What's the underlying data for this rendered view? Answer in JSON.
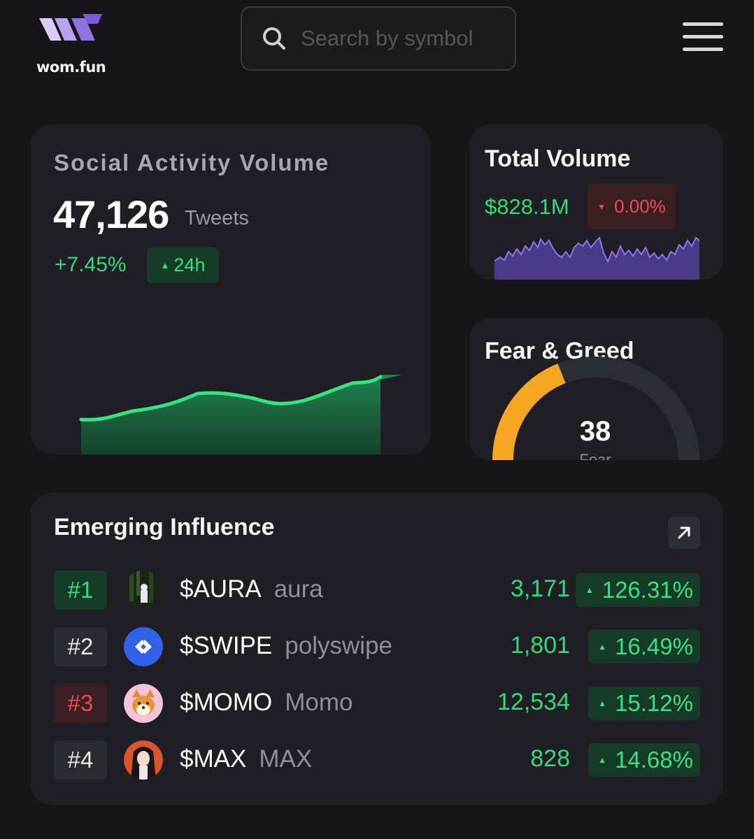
{
  "header": {
    "logo_text": "wom.fun",
    "search_placeholder": "Search by symbol",
    "icons": [
      "search-icon",
      "menu-icon"
    ]
  },
  "social_activity": {
    "title": "Social Activity Volume",
    "value": "47,126",
    "unit": "Tweets",
    "change": "+7.45%",
    "period": "24h",
    "accent_color": "#2fdc78"
  },
  "total_volume": {
    "title": "Total Volume",
    "value": "$828.1M",
    "change": "0.00%",
    "change_color": "#ef4a5a"
  },
  "fear_greed": {
    "title": "Fear & Greed",
    "value": "38",
    "label": "Fear",
    "gauge_fraction": 0.38,
    "gauge_color": "#f5a623"
  },
  "emerging": {
    "title": "Emerging Influence",
    "rows": [
      {
        "rank": "#1",
        "ticker": "$AURA",
        "name": "aura",
        "count": "3,171",
        "change": "126.31%",
        "rank_bg": "#153a28",
        "rank_color": "#34e07e"
      },
      {
        "rank": "#2",
        "ticker": "$SWIPE",
        "name": "polyswipe",
        "count": "1,801",
        "change": "16.49%",
        "rank_bg": "#2a2a31",
        "rank_color": "#e6e6ea"
      },
      {
        "rank": "#3",
        "ticker": "$MOMO",
        "name": "Momo",
        "count": "12,534",
        "change": "15.12%",
        "rank_bg": "#3a1e24",
        "rank_color": "#ef4a5a"
      },
      {
        "rank": "#4",
        "ticker": "$MAX",
        "name": "MAX",
        "count": "828",
        "change": "14.68%",
        "rank_bg": "#2a2a31",
        "rank_color": "#e6e6ea"
      }
    ]
  }
}
